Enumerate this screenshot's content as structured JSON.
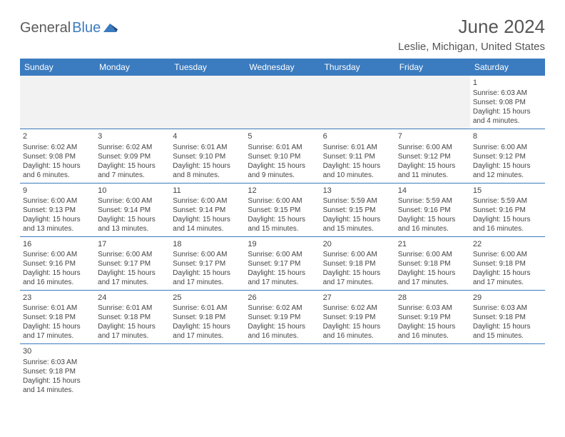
{
  "logo": {
    "part1": "General",
    "part2": "Blue"
  },
  "title": "June 2024",
  "location": "Leslie, Michigan, United States",
  "header_color": "#3b7bbf",
  "header_text_color": "#ffffff",
  "cell_border_color": "#3b7bbf",
  "body_text_color": "#444444",
  "font_family": "Arial",
  "day_headers": [
    "Sunday",
    "Monday",
    "Tuesday",
    "Wednesday",
    "Thursday",
    "Friday",
    "Saturday"
  ],
  "weeks": [
    [
      null,
      null,
      null,
      null,
      null,
      null,
      {
        "n": "1",
        "sr": "Sunrise: 6:03 AM",
        "ss": "Sunset: 9:08 PM",
        "d1": "Daylight: 15 hours",
        "d2": "and 4 minutes."
      }
    ],
    [
      {
        "n": "2",
        "sr": "Sunrise: 6:02 AM",
        "ss": "Sunset: 9:08 PM",
        "d1": "Daylight: 15 hours",
        "d2": "and 6 minutes."
      },
      {
        "n": "3",
        "sr": "Sunrise: 6:02 AM",
        "ss": "Sunset: 9:09 PM",
        "d1": "Daylight: 15 hours",
        "d2": "and 7 minutes."
      },
      {
        "n": "4",
        "sr": "Sunrise: 6:01 AM",
        "ss": "Sunset: 9:10 PM",
        "d1": "Daylight: 15 hours",
        "d2": "and 8 minutes."
      },
      {
        "n": "5",
        "sr": "Sunrise: 6:01 AM",
        "ss": "Sunset: 9:10 PM",
        "d1": "Daylight: 15 hours",
        "d2": "and 9 minutes."
      },
      {
        "n": "6",
        "sr": "Sunrise: 6:01 AM",
        "ss": "Sunset: 9:11 PM",
        "d1": "Daylight: 15 hours",
        "d2": "and 10 minutes."
      },
      {
        "n": "7",
        "sr": "Sunrise: 6:00 AM",
        "ss": "Sunset: 9:12 PM",
        "d1": "Daylight: 15 hours",
        "d2": "and 11 minutes."
      },
      {
        "n": "8",
        "sr": "Sunrise: 6:00 AM",
        "ss": "Sunset: 9:12 PM",
        "d1": "Daylight: 15 hours",
        "d2": "and 12 minutes."
      }
    ],
    [
      {
        "n": "9",
        "sr": "Sunrise: 6:00 AM",
        "ss": "Sunset: 9:13 PM",
        "d1": "Daylight: 15 hours",
        "d2": "and 13 minutes."
      },
      {
        "n": "10",
        "sr": "Sunrise: 6:00 AM",
        "ss": "Sunset: 9:14 PM",
        "d1": "Daylight: 15 hours",
        "d2": "and 13 minutes."
      },
      {
        "n": "11",
        "sr": "Sunrise: 6:00 AM",
        "ss": "Sunset: 9:14 PM",
        "d1": "Daylight: 15 hours",
        "d2": "and 14 minutes."
      },
      {
        "n": "12",
        "sr": "Sunrise: 6:00 AM",
        "ss": "Sunset: 9:15 PM",
        "d1": "Daylight: 15 hours",
        "d2": "and 15 minutes."
      },
      {
        "n": "13",
        "sr": "Sunrise: 5:59 AM",
        "ss": "Sunset: 9:15 PM",
        "d1": "Daylight: 15 hours",
        "d2": "and 15 minutes."
      },
      {
        "n": "14",
        "sr": "Sunrise: 5:59 AM",
        "ss": "Sunset: 9:16 PM",
        "d1": "Daylight: 15 hours",
        "d2": "and 16 minutes."
      },
      {
        "n": "15",
        "sr": "Sunrise: 5:59 AM",
        "ss": "Sunset: 9:16 PM",
        "d1": "Daylight: 15 hours",
        "d2": "and 16 minutes."
      }
    ],
    [
      {
        "n": "16",
        "sr": "Sunrise: 6:00 AM",
        "ss": "Sunset: 9:16 PM",
        "d1": "Daylight: 15 hours",
        "d2": "and 16 minutes."
      },
      {
        "n": "17",
        "sr": "Sunrise: 6:00 AM",
        "ss": "Sunset: 9:17 PM",
        "d1": "Daylight: 15 hours",
        "d2": "and 17 minutes."
      },
      {
        "n": "18",
        "sr": "Sunrise: 6:00 AM",
        "ss": "Sunset: 9:17 PM",
        "d1": "Daylight: 15 hours",
        "d2": "and 17 minutes."
      },
      {
        "n": "19",
        "sr": "Sunrise: 6:00 AM",
        "ss": "Sunset: 9:17 PM",
        "d1": "Daylight: 15 hours",
        "d2": "and 17 minutes."
      },
      {
        "n": "20",
        "sr": "Sunrise: 6:00 AM",
        "ss": "Sunset: 9:18 PM",
        "d1": "Daylight: 15 hours",
        "d2": "and 17 minutes."
      },
      {
        "n": "21",
        "sr": "Sunrise: 6:00 AM",
        "ss": "Sunset: 9:18 PM",
        "d1": "Daylight: 15 hours",
        "d2": "and 17 minutes."
      },
      {
        "n": "22",
        "sr": "Sunrise: 6:00 AM",
        "ss": "Sunset: 9:18 PM",
        "d1": "Daylight: 15 hours",
        "d2": "and 17 minutes."
      }
    ],
    [
      {
        "n": "23",
        "sr": "Sunrise: 6:01 AM",
        "ss": "Sunset: 9:18 PM",
        "d1": "Daylight: 15 hours",
        "d2": "and 17 minutes."
      },
      {
        "n": "24",
        "sr": "Sunrise: 6:01 AM",
        "ss": "Sunset: 9:18 PM",
        "d1": "Daylight: 15 hours",
        "d2": "and 17 minutes."
      },
      {
        "n": "25",
        "sr": "Sunrise: 6:01 AM",
        "ss": "Sunset: 9:18 PM",
        "d1": "Daylight: 15 hours",
        "d2": "and 17 minutes."
      },
      {
        "n": "26",
        "sr": "Sunrise: 6:02 AM",
        "ss": "Sunset: 9:19 PM",
        "d1": "Daylight: 15 hours",
        "d2": "and 16 minutes."
      },
      {
        "n": "27",
        "sr": "Sunrise: 6:02 AM",
        "ss": "Sunset: 9:19 PM",
        "d1": "Daylight: 15 hours",
        "d2": "and 16 minutes."
      },
      {
        "n": "28",
        "sr": "Sunrise: 6:03 AM",
        "ss": "Sunset: 9:19 PM",
        "d1": "Daylight: 15 hours",
        "d2": "and 16 minutes."
      },
      {
        "n": "29",
        "sr": "Sunrise: 6:03 AM",
        "ss": "Sunset: 9:18 PM",
        "d1": "Daylight: 15 hours",
        "d2": "and 15 minutes."
      }
    ],
    [
      {
        "n": "30",
        "sr": "Sunrise: 6:03 AM",
        "ss": "Sunset: 9:18 PM",
        "d1": "Daylight: 15 hours",
        "d2": "and 14 minutes."
      },
      null,
      null,
      null,
      null,
      null,
      null
    ]
  ]
}
